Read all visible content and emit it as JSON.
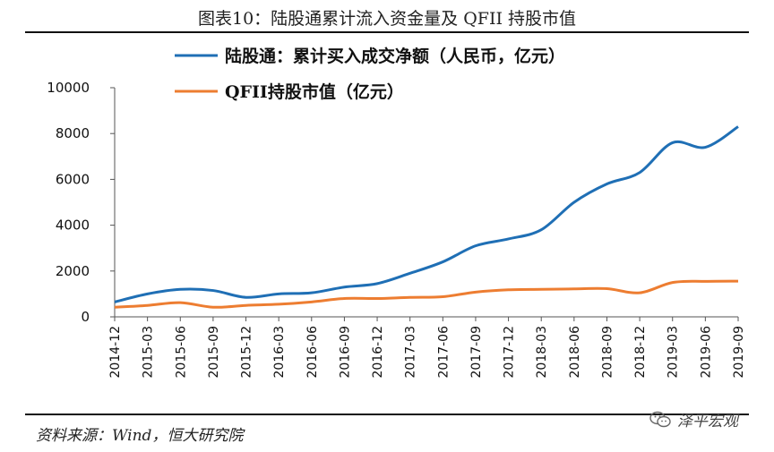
{
  "title": "图表10：陆股通累计流入资金量及 QFII 持股市值",
  "source": "资料来源：Wind，恒大研究院",
  "brand": "泽平宏观",
  "chart_data": {
    "type": "line",
    "x": [
      "2014-12",
      "2015-03",
      "2015-06",
      "2015-09",
      "2015-12",
      "2016-03",
      "2016-06",
      "2016-09",
      "2016-12",
      "2017-03",
      "2017-06",
      "2017-09",
      "2017-12",
      "2018-03",
      "2018-06",
      "2018-09",
      "2018-12",
      "2019-03",
      "2019-06",
      "2019-09"
    ],
    "ylim": [
      0,
      10000
    ],
    "yticks": [
      0,
      2000,
      4000,
      6000,
      8000,
      10000
    ],
    "legend_position": "top",
    "grid": false,
    "series": [
      {
        "name": "陆股通：累计买入成交净额（人民币，亿元）",
        "color": "#1f6fb5",
        "values": [
          650,
          1000,
          1200,
          1150,
          850,
          1000,
          1050,
          1300,
          1450,
          1900,
          2400,
          3100,
          3400,
          3800,
          5000,
          5800,
          6300,
          7600,
          7400,
          8300
        ]
      },
      {
        "name": "QFII持股市值（亿元）",
        "color": "#ed7d31",
        "values": [
          420,
          500,
          620,
          420,
          500,
          550,
          650,
          800,
          800,
          850,
          880,
          1080,
          1180,
          1200,
          1220,
          1230,
          1050,
          1500,
          1550,
          1560
        ]
      }
    ]
  }
}
